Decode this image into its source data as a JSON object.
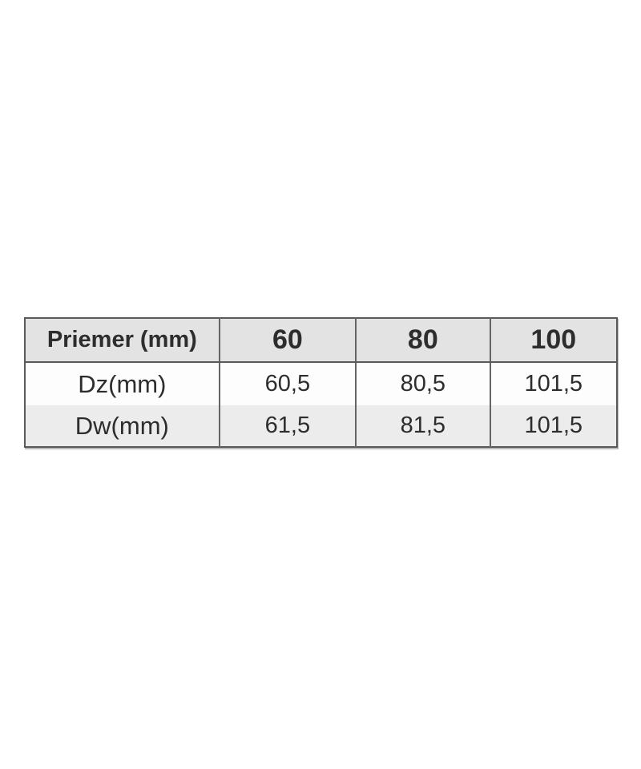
{
  "page": {
    "background_color": "#ffffff"
  },
  "table": {
    "header": {
      "label": "Priemer (mm)",
      "columns": [
        "60",
        "80",
        "100"
      ]
    },
    "rows": [
      {
        "label": "Dz(mm)",
        "values": [
          "60,5",
          "80,5",
          "101,5"
        ]
      },
      {
        "label": "Dw(mm)",
        "values": [
          "61,5",
          "81,5",
          "101,5"
        ]
      }
    ],
    "colors": {
      "header_bg": "#e3e3e3",
      "row_white_bg": "#fdfdfd",
      "row_alt_bg": "#ececec",
      "border": "#58595b",
      "text": "#2d2d2d"
    }
  }
}
